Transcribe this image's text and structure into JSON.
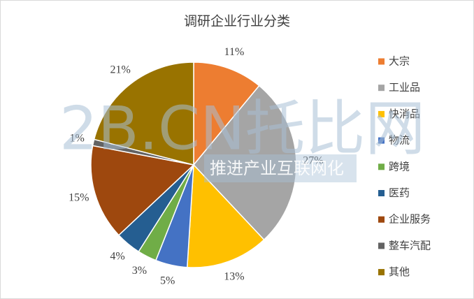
{
  "chart_data": {
    "type": "pie",
    "title": "调研企业行业分类",
    "categories": [
      "大宗",
      "工业品",
      "快消品",
      "物流",
      "跨境",
      "医药",
      "企业服务",
      "整车汽配",
      "其他"
    ],
    "values": [
      11,
      27,
      13,
      5,
      3,
      4,
      15,
      1,
      21
    ],
    "value_labels": [
      "11%",
      "27%",
      "13%",
      "5%",
      "3%",
      "4%",
      "15%",
      "1%",
      "21%"
    ],
    "colors": [
      "#ed7d31",
      "#a5a5a5",
      "#ffc000",
      "#4472c4",
      "#70ad47",
      "#255e91",
      "#9e480e",
      "#636363",
      "#997300"
    ],
    "legend": "right",
    "watermark": [
      "2B.CN托比网",
      "推进产业互联网化"
    ]
  }
}
